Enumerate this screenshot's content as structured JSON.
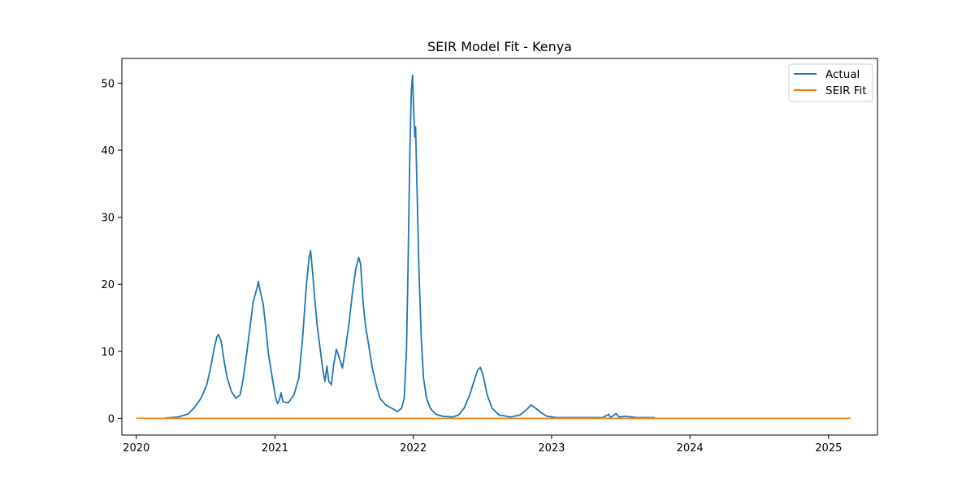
{
  "chart_data": {
    "type": "line",
    "title": "SEIR Model Fit - Kenya",
    "xlabel": "",
    "ylabel": "",
    "x_ticks": [
      "2020",
      "2021",
      "2022",
      "2023",
      "2024",
      "2025"
    ],
    "y_ticks": [
      "0",
      "10",
      "20",
      "30",
      "40",
      "50"
    ],
    "xlim": [
      "2019-11-24",
      "2025-05-10"
    ],
    "ylim": [
      -2.5,
      53.7
    ],
    "grid": false,
    "legend_position": "top-right",
    "series": [
      {
        "name": "Actual",
        "color": "#1f77b4",
        "points": [
          [
            "2020-03-15",
            0.0
          ],
          [
            "2020-04-01",
            0.1
          ],
          [
            "2020-04-20",
            0.2
          ],
          [
            "2020-05-15",
            0.6
          ],
          [
            "2020-06-01",
            1.5
          ],
          [
            "2020-06-20",
            3.0
          ],
          [
            "2020-07-05",
            5.0
          ],
          [
            "2020-07-15",
            7.5
          ],
          [
            "2020-07-25",
            10.5
          ],
          [
            "2020-08-01",
            12.2
          ],
          [
            "2020-08-05",
            12.5
          ],
          [
            "2020-08-12",
            11.5
          ],
          [
            "2020-08-20",
            8.5
          ],
          [
            "2020-08-28",
            6.0
          ],
          [
            "2020-09-08",
            4.0
          ],
          [
            "2020-09-20",
            3.0
          ],
          [
            "2020-10-01",
            3.5
          ],
          [
            "2020-10-08",
            5.5
          ],
          [
            "2020-10-18",
            9.5
          ],
          [
            "2020-10-28",
            14.0
          ],
          [
            "2020-11-05",
            17.5
          ],
          [
            "2020-11-15",
            19.5
          ],
          [
            "2020-11-18",
            20.4
          ],
          [
            "2020-11-25",
            18.5
          ],
          [
            "2020-12-01",
            17.0
          ],
          [
            "2020-12-08",
            13.5
          ],
          [
            "2020-12-15",
            9.5
          ],
          [
            "2020-12-25",
            6.0
          ],
          [
            "2021-01-03",
            3.0
          ],
          [
            "2021-01-08",
            2.2
          ],
          [
            "2021-01-13",
            2.8
          ],
          [
            "2021-01-17",
            3.8
          ],
          [
            "2021-01-22",
            2.5
          ],
          [
            "2021-02-05",
            2.3
          ],
          [
            "2021-02-20",
            3.5
          ],
          [
            "2021-03-05",
            6.0
          ],
          [
            "2021-03-15",
            12.0
          ],
          [
            "2021-03-25",
            20.0
          ],
          [
            "2021-04-01",
            24.0
          ],
          [
            "2021-04-05",
            25.0
          ],
          [
            "2021-04-10",
            22.0
          ],
          [
            "2021-04-15",
            18.5
          ],
          [
            "2021-04-22",
            14.0
          ],
          [
            "2021-05-01",
            10.0
          ],
          [
            "2021-05-08",
            7.0
          ],
          [
            "2021-05-13",
            5.5
          ],
          [
            "2021-05-18",
            7.8
          ],
          [
            "2021-05-23",
            5.5
          ],
          [
            "2021-05-30",
            5.0
          ],
          [
            "2021-06-05",
            8.0
          ],
          [
            "2021-06-12",
            10.3
          ],
          [
            "2021-06-20",
            9.0
          ],
          [
            "2021-06-28",
            7.5
          ],
          [
            "2021-07-05",
            10.0
          ],
          [
            "2021-07-15",
            14.0
          ],
          [
            "2021-07-25",
            19.0
          ],
          [
            "2021-08-03",
            22.5
          ],
          [
            "2021-08-10",
            24.0
          ],
          [
            "2021-08-15",
            23.0
          ],
          [
            "2021-08-22",
            17.0
          ],
          [
            "2021-08-28",
            13.8
          ],
          [
            "2021-09-05",
            11.0
          ],
          [
            "2021-09-15",
            7.5
          ],
          [
            "2021-09-25",
            5.0
          ],
          [
            "2021-10-05",
            3.0
          ],
          [
            "2021-10-20",
            2.0
          ],
          [
            "2021-11-05",
            1.5
          ],
          [
            "2021-11-20",
            1.0
          ],
          [
            "2021-12-01",
            1.5
          ],
          [
            "2021-12-08",
            3.0
          ],
          [
            "2021-12-14",
            10.0
          ],
          [
            "2021-12-18",
            22.0
          ],
          [
            "2021-12-23",
            40.0
          ],
          [
            "2021-12-27",
            49.0
          ],
          [
            "2021-12-30",
            51.2
          ],
          [
            "2022-01-02",
            46.0
          ],
          [
            "2022-01-05",
            42.0
          ],
          [
            "2022-01-07",
            43.5
          ],
          [
            "2022-01-11",
            34.0
          ],
          [
            "2022-01-16",
            22.0
          ],
          [
            "2022-01-22",
            12.0
          ],
          [
            "2022-01-28",
            6.0
          ],
          [
            "2022-02-05",
            3.0
          ],
          [
            "2022-02-15",
            1.5
          ],
          [
            "2022-03-01",
            0.6
          ],
          [
            "2022-03-20",
            0.3
          ],
          [
            "2022-04-15",
            0.2
          ],
          [
            "2022-05-01",
            0.5
          ],
          [
            "2022-05-15",
            1.5
          ],
          [
            "2022-05-30",
            3.5
          ],
          [
            "2022-06-10",
            5.5
          ],
          [
            "2022-06-20",
            7.2
          ],
          [
            "2022-06-27",
            7.6
          ],
          [
            "2022-07-04",
            6.5
          ],
          [
            "2022-07-15",
            3.5
          ],
          [
            "2022-07-28",
            1.5
          ],
          [
            "2022-08-15",
            0.5
          ],
          [
            "2022-09-15",
            0.2
          ],
          [
            "2022-10-10",
            0.5
          ],
          [
            "2022-10-25",
            1.2
          ],
          [
            "2022-11-08",
            2.0
          ],
          [
            "2022-11-20",
            1.5
          ],
          [
            "2022-12-05",
            0.8
          ],
          [
            "2022-12-20",
            0.3
          ],
          [
            "2023-01-15",
            0.1
          ],
          [
            "2023-03-01",
            0.1
          ],
          [
            "2023-05-15",
            0.1
          ],
          [
            "2023-06-01",
            0.6
          ],
          [
            "2023-06-05",
            0.1
          ],
          [
            "2023-06-20",
            0.7
          ],
          [
            "2023-06-28",
            0.2
          ],
          [
            "2023-07-15",
            0.3
          ],
          [
            "2023-08-15",
            0.1
          ],
          [
            "2023-10-01",
            0.1
          ]
        ]
      },
      {
        "name": "SEIR Fit",
        "color": "#ff7f0e",
        "points": [
          [
            "2020-01-01",
            0.0
          ],
          [
            "2025-02-28",
            0.0
          ]
        ]
      }
    ]
  }
}
